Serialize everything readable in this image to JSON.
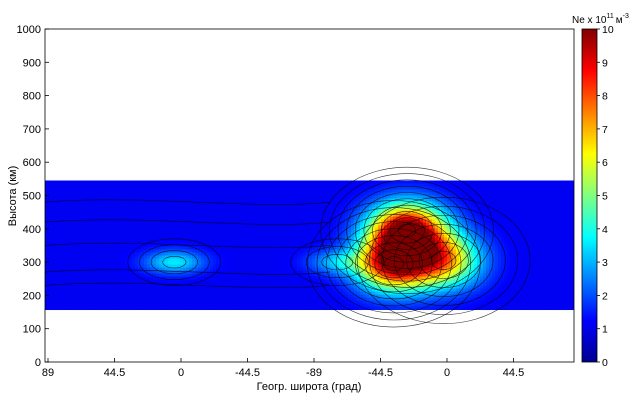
{
  "chart_data": {
    "type": "heatmap",
    "title": "",
    "xlabel": "Геогр. широта (град)",
    "ylabel": "Высота (км)",
    "x_tick_labels": [
      "89",
      "44.5",
      "0",
      "-44.5",
      "-89",
      "-44.5",
      "0",
      "44.5"
    ],
    "y_tick_labels": [
      "0",
      "100",
      "200",
      "300",
      "400",
      "500",
      "600",
      "700",
      "800",
      "900",
      "1000"
    ],
    "ylim": [
      0,
      1000
    ],
    "data_altitude_range": [
      160,
      545
    ],
    "colorbar": {
      "label": "Ne x 10",
      "exponent": "11",
      "unit": "м",
      "unit_exponent": "-3",
      "range": [
        0,
        10
      ],
      "tick_labels": [
        "0",
        "1",
        "2",
        "3",
        "4",
        "5",
        "6",
        "7",
        "8",
        "9",
        "10"
      ],
      "colormap": [
        "#00008f",
        "#0000ff",
        "#0080ff",
        "#00ffff",
        "#80ff80",
        "#ffff00",
        "#ff8000",
        "#ff0000",
        "#800000"
      ]
    },
    "features": [
      {
        "kind": "maximum",
        "x_position_tick": 5.4,
        "altitude_km": 395,
        "value": 10
      },
      {
        "kind": "maximum",
        "x_position_tick": 5.2,
        "altitude_km": 295,
        "value": 9
      },
      {
        "kind": "maximum",
        "x_position_tick": 5.95,
        "altitude_km": 305,
        "value": 6.5
      },
      {
        "kind": "maximum",
        "x_position_tick": 1.9,
        "altitude_km": 300,
        "value": 3.5
      },
      {
        "kind": "maximum",
        "x_position_tick": 4.35,
        "altitude_km": 300,
        "value": 2.8
      }
    ],
    "grid": false,
    "contour_lines": true
  }
}
